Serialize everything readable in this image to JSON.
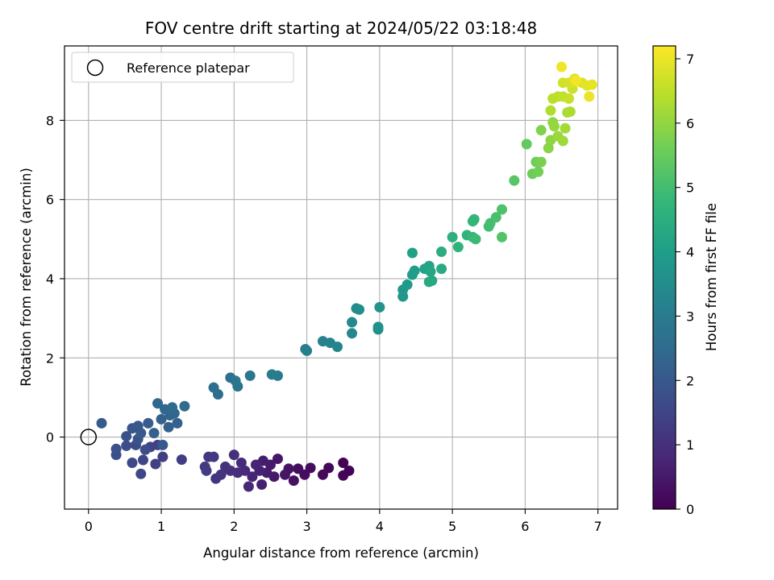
{
  "chart_data": {
    "type": "scatter",
    "title": "FOV centre drift starting at 2024/05/22 03:18:48",
    "xlabel": "Angular distance from reference (arcmin)",
    "ylabel": "Rotation from reference (arcmin)",
    "xlim": [
      -0.33,
      7.27
    ],
    "ylim": [
      -1.82,
      9.88
    ],
    "xticks": [
      0,
      1,
      2,
      3,
      4,
      5,
      6,
      7
    ],
    "yticks": [
      0,
      2,
      4,
      6,
      8
    ],
    "grid": true,
    "legend": {
      "location": "upper-left",
      "entries": [
        "Reference platepar"
      ]
    },
    "reference_point": {
      "x": 0,
      "y": 0
    },
    "colorbar": {
      "label": "Hours from first FF file",
      "colormap": "viridis",
      "range": [
        0,
        7.2
      ],
      "ticks": [
        0,
        1,
        2,
        3,
        4,
        5,
        6,
        7
      ]
    },
    "colors": {
      "reference_marker": "#000000",
      "grid": "#b0b0b0",
      "viridis": [
        "#440154",
        "#482878",
        "#3e4989",
        "#31688e",
        "#26828e",
        "#1f9e89",
        "#35b779",
        "#6ece58",
        "#b5de2b",
        "#fde725"
      ]
    },
    "points": [
      [
        3.5,
        -0.65,
        0.0
      ],
      [
        3.58,
        -0.85,
        0.05
      ],
      [
        3.5,
        -0.97,
        0.08
      ],
      [
        3.3,
        -0.78,
        0.12
      ],
      [
        3.22,
        -0.95,
        0.16
      ],
      [
        3.05,
        -0.78,
        0.2
      ],
      [
        2.97,
        -0.95,
        0.24
      ],
      [
        2.88,
        -0.8,
        0.28
      ],
      [
        2.82,
        -1.1,
        0.32
      ],
      [
        2.75,
        -0.8,
        0.36
      ],
      [
        2.7,
        -0.95,
        0.4
      ],
      [
        2.6,
        -0.55,
        0.44
      ],
      [
        2.55,
        -1.0,
        0.48
      ],
      [
        2.5,
        -0.7,
        0.52
      ],
      [
        2.45,
        -0.9,
        0.56
      ],
      [
        2.4,
        -0.6,
        0.6
      ],
      [
        2.38,
        -1.2,
        0.64
      ],
      [
        2.35,
        -0.85,
        0.68
      ],
      [
        2.3,
        -0.7,
        0.72
      ],
      [
        2.25,
        -1.0,
        0.76
      ],
      [
        2.2,
        -1.25,
        0.8
      ],
      [
        2.15,
        -0.85,
        0.84
      ],
      [
        2.1,
        -0.65,
        0.88
      ],
      [
        2.05,
        -0.9,
        0.92
      ],
      [
        2.0,
        -0.45,
        0.96
      ],
      [
        1.95,
        -0.85,
        1.0
      ],
      [
        1.88,
        -0.75,
        1.04
      ],
      [
        1.82,
        -0.95,
        1.08
      ],
      [
        1.75,
        -1.05,
        1.12
      ],
      [
        1.72,
        -0.5,
        1.16
      ],
      [
        1.65,
        -0.5,
        1.2
      ],
      [
        1.6,
        -0.75,
        1.24
      ],
      [
        1.62,
        -0.85,
        1.28
      ],
      [
        1.28,
        -0.57,
        1.32
      ],
      [
        1.02,
        -0.5,
        1.36
      ],
      [
        0.92,
        -0.68,
        1.4
      ],
      [
        0.95,
        -0.2,
        1.44
      ],
      [
        0.85,
        -0.25,
        1.48
      ],
      [
        0.75,
        -0.58,
        1.52
      ],
      [
        0.72,
        -0.93,
        1.56
      ],
      [
        0.6,
        -0.65,
        1.6
      ],
      [
        0.65,
        -0.2,
        1.64
      ],
      [
        0.52,
        -0.22,
        1.68
      ],
      [
        0.78,
        -0.32,
        1.72
      ],
      [
        0.38,
        -0.45,
        1.76
      ],
      [
        0.38,
        -0.3,
        1.8
      ],
      [
        0.52,
        0.02,
        1.84
      ],
      [
        0.68,
        -0.05,
        1.88
      ],
      [
        0.6,
        0.22,
        1.92
      ],
      [
        0.68,
        0.28,
        1.96
      ],
      [
        0.72,
        0.1,
        2.0
      ],
      [
        1.02,
        -0.2,
        2.04
      ],
      [
        0.18,
        0.35,
        2.08
      ],
      [
        0.82,
        0.35,
        2.12
      ],
      [
        0.9,
        0.1,
        2.16
      ],
      [
        1.1,
        0.25,
        2.2
      ],
      [
        1.0,
        0.45,
        2.24
      ],
      [
        1.22,
        0.35,
        2.28
      ],
      [
        1.12,
        0.55,
        2.32
      ],
      [
        1.18,
        0.6,
        2.36
      ],
      [
        1.05,
        0.7,
        2.4
      ],
      [
        0.95,
        0.85,
        2.44
      ],
      [
        1.15,
        0.75,
        2.48
      ],
      [
        1.32,
        0.78,
        2.52
      ],
      [
        1.78,
        1.08,
        2.56
      ],
      [
        1.72,
        1.25,
        2.62
      ],
      [
        1.95,
        1.5,
        2.68
      ],
      [
        2.05,
        1.28,
        2.74
      ],
      [
        2.02,
        1.42,
        2.8
      ],
      [
        2.22,
        1.55,
        2.86
      ],
      [
        2.6,
        1.55,
        2.92
      ],
      [
        2.52,
        1.58,
        2.98
      ],
      [
        2.98,
        2.22,
        3.04
      ],
      [
        3.0,
        2.18,
        3.1
      ],
      [
        3.22,
        2.42,
        3.16
      ],
      [
        3.32,
        2.38,
        3.22
      ],
      [
        3.42,
        2.28,
        3.28
      ],
      [
        3.62,
        2.62,
        3.34
      ],
      [
        3.62,
        2.9,
        3.4
      ],
      [
        3.68,
        3.25,
        3.46
      ],
      [
        3.72,
        3.22,
        3.52
      ],
      [
        3.98,
        2.72,
        3.58
      ],
      [
        3.98,
        2.78,
        3.64
      ],
      [
        4.0,
        3.28,
        3.7
      ],
      [
        4.32,
        3.55,
        3.76
      ],
      [
        4.32,
        3.72,
        3.82
      ],
      [
        4.38,
        3.85,
        3.88
      ],
      [
        4.45,
        4.1,
        3.94
      ],
      [
        4.48,
        4.2,
        4.0
      ],
      [
        4.45,
        4.65,
        4.06
      ],
      [
        4.62,
        4.25,
        4.12
      ],
      [
        4.68,
        4.32,
        4.18
      ],
      [
        4.7,
        4.18,
        4.24
      ],
      [
        4.72,
        3.95,
        4.3
      ],
      [
        4.68,
        3.92,
        4.36
      ],
      [
        4.85,
        4.25,
        4.42
      ],
      [
        4.85,
        4.68,
        4.48
      ],
      [
        5.0,
        5.05,
        4.54
      ],
      [
        5.08,
        4.8,
        4.6
      ],
      [
        5.2,
        5.1,
        4.66
      ],
      [
        5.28,
        5.45,
        4.72
      ],
      [
        5.3,
        5.5,
        4.78
      ],
      [
        5.28,
        5.05,
        4.84
      ],
      [
        5.32,
        5.0,
        4.9
      ],
      [
        5.5,
        5.32,
        4.96
      ],
      [
        5.52,
        5.4,
        5.02
      ],
      [
        5.6,
        5.55,
        5.08
      ],
      [
        5.68,
        5.75,
        5.14
      ],
      [
        5.68,
        5.05,
        5.2
      ],
      [
        5.85,
        6.48,
        5.3
      ],
      [
        6.02,
        7.4,
        5.45
      ],
      [
        6.1,
        6.65,
        5.55
      ],
      [
        6.15,
        6.95,
        5.6
      ],
      [
        6.18,
        6.7,
        5.65
      ],
      [
        6.22,
        6.95,
        5.7
      ],
      [
        6.22,
        7.75,
        5.8
      ],
      [
        6.32,
        7.3,
        5.9
      ],
      [
        6.35,
        7.5,
        5.95
      ],
      [
        6.38,
        7.95,
        6.0
      ],
      [
        6.4,
        7.85,
        6.05
      ],
      [
        6.45,
        7.6,
        6.1
      ],
      [
        6.52,
        7.48,
        6.15
      ],
      [
        6.55,
        7.8,
        6.2
      ],
      [
        6.58,
        8.2,
        6.25
      ],
      [
        6.62,
        8.22,
        6.3
      ],
      [
        6.35,
        8.25,
        6.35
      ],
      [
        6.38,
        8.55,
        6.45
      ],
      [
        6.45,
        8.6,
        6.5
      ],
      [
        6.52,
        8.6,
        6.55
      ],
      [
        6.6,
        8.55,
        6.6
      ],
      [
        6.65,
        8.8,
        6.65
      ],
      [
        6.52,
        8.95,
        6.7
      ],
      [
        6.6,
        8.95,
        6.75
      ],
      [
        6.68,
        9.05,
        6.8
      ],
      [
        6.78,
        8.95,
        6.85
      ],
      [
        6.85,
        8.88,
        6.9
      ],
      [
        6.92,
        8.9,
        6.95
      ],
      [
        6.88,
        8.6,
        7.0
      ],
      [
        6.5,
        9.35,
        7.05
      ],
      [
        6.7,
        9.0,
        7.1
      ]
    ]
  }
}
